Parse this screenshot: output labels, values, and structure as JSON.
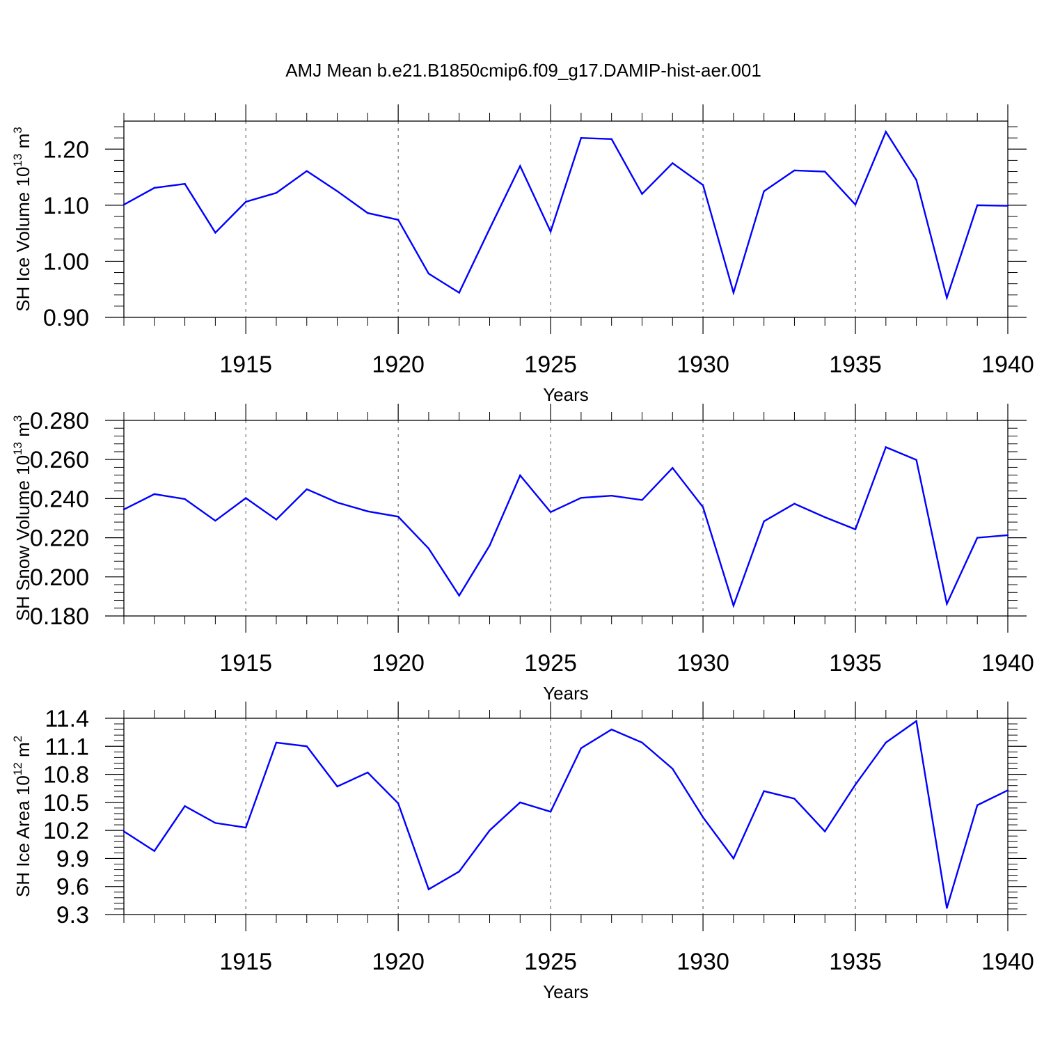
{
  "title": "AMJ Mean b.e21.B1850cmip6.f09_g17.DAMIP-hist-aer.001",
  "chart_data": [
    {
      "type": "line",
      "ylabel": {
        "text": "SH Ice Volume 10",
        "sup": "13",
        "unit": " m",
        "unit_sup": "3"
      },
      "xlabel": "Years",
      "xlim": [
        1911,
        1940
      ],
      "ylim": [
        0.9,
        1.25
      ],
      "xticks": [
        1915,
        1920,
        1925,
        1930,
        1935,
        1940
      ],
      "xtick_labels": [
        "1915",
        "1920",
        "1925",
        "1930",
        "1935",
        "1940"
      ],
      "yticks": [
        0.9,
        1.0,
        1.1,
        1.2
      ],
      "ytick_labels": [
        "0.90",
        "1.00",
        "1.10",
        "1.20"
      ],
      "grid": "vertical dashed at major x ticks",
      "line_color": "#0000ff",
      "x": [
        1911,
        1912,
        1913,
        1914,
        1915,
        1916,
        1917,
        1918,
        1919,
        1920,
        1921,
        1922,
        1923,
        1924,
        1925,
        1926,
        1927,
        1928,
        1929,
        1930,
        1931,
        1932,
        1933,
        1934,
        1935,
        1936,
        1937,
        1938,
        1939,
        1940
      ],
      "y": [
        1.101,
        1.131,
        1.138,
        1.051,
        1.106,
        1.122,
        1.161,
        1.125,
        1.086,
        1.074,
        0.978,
        0.944,
        1.058,
        1.17,
        1.053,
        1.22,
        1.218,
        1.12,
        1.175,
        1.136,
        0.944,
        1.125,
        1.162,
        1.16,
        1.101,
        1.231,
        1.145,
        0.935,
        1.1,
        1.099
      ]
    },
    {
      "type": "line",
      "ylabel": {
        "text": "SH Snow Volume 10",
        "sup": "13",
        "unit": " m",
        "unit_sup": "3"
      },
      "xlabel": "Years",
      "xlim": [
        1911,
        1940
      ],
      "ylim": [
        0.18,
        0.28
      ],
      "xticks": [
        1915,
        1920,
        1925,
        1930,
        1935,
        1940
      ],
      "xtick_labels": [
        "1915",
        "1920",
        "1925",
        "1930",
        "1935",
        "1940"
      ],
      "yticks": [
        0.18,
        0.2,
        0.22,
        0.24,
        0.26,
        0.28
      ],
      "ytick_labels": [
        "0.180",
        "0.200",
        "0.220",
        "0.240",
        "0.260",
        "0.280"
      ],
      "grid": "vertical dashed at major x ticks",
      "line_color": "#0000ff",
      "x": [
        1911,
        1912,
        1913,
        1914,
        1915,
        1916,
        1917,
        1918,
        1919,
        1920,
        1921,
        1922,
        1923,
        1924,
        1925,
        1926,
        1927,
        1928,
        1929,
        1930,
        1931,
        1932,
        1933,
        1934,
        1935,
        1936,
        1937,
        1938,
        1939,
        1940
      ],
      "y": [
        0.2345,
        0.2423,
        0.2398,
        0.2287,
        0.2403,
        0.2293,
        0.2448,
        0.238,
        0.2335,
        0.2308,
        0.2145,
        0.1904,
        0.216,
        0.2519,
        0.2331,
        0.2404,
        0.2415,
        0.2393,
        0.2557,
        0.2356,
        0.1853,
        0.2284,
        0.2374,
        0.2305,
        0.2243,
        0.2663,
        0.2598,
        0.1862,
        0.22,
        0.2213
      ]
    },
    {
      "type": "line",
      "ylabel": {
        "text": "SH Ice Area 10",
        "sup": "12",
        "unit": " m",
        "unit_sup": "2"
      },
      "xlabel": "Years",
      "xlim": [
        1911,
        1940
      ],
      "ylim": [
        9.3,
        11.4
      ],
      "xticks": [
        1915,
        1920,
        1925,
        1930,
        1935,
        1940
      ],
      "xtick_labels": [
        "1915",
        "1920",
        "1925",
        "1930",
        "1935",
        "1940"
      ],
      "yticks": [
        9.3,
        9.6,
        9.9,
        10.2,
        10.5,
        10.8,
        11.1,
        11.4
      ],
      "ytick_labels": [
        "9.3",
        "9.6",
        "9.9",
        "10.2",
        "10.5",
        "10.8",
        "11.1",
        "11.4"
      ],
      "grid": "vertical dashed at major x ticks",
      "line_color": "#0000ff",
      "x": [
        1911,
        1912,
        1913,
        1914,
        1915,
        1916,
        1917,
        1918,
        1919,
        1920,
        1921,
        1922,
        1923,
        1924,
        1925,
        1926,
        1927,
        1928,
        1929,
        1930,
        1931,
        1932,
        1933,
        1934,
        1935,
        1936,
        1937,
        1938,
        1939,
        1940
      ],
      "y": [
        10.19,
        9.98,
        10.46,
        10.28,
        10.23,
        11.14,
        11.1,
        10.67,
        10.82,
        10.49,
        9.57,
        9.76,
        10.2,
        10.5,
        10.4,
        11.08,
        11.28,
        11.14,
        10.86,
        10.34,
        9.9,
        10.62,
        10.54,
        10.19,
        10.69,
        11.14,
        11.37,
        9.37,
        10.47,
        10.63
      ]
    }
  ]
}
